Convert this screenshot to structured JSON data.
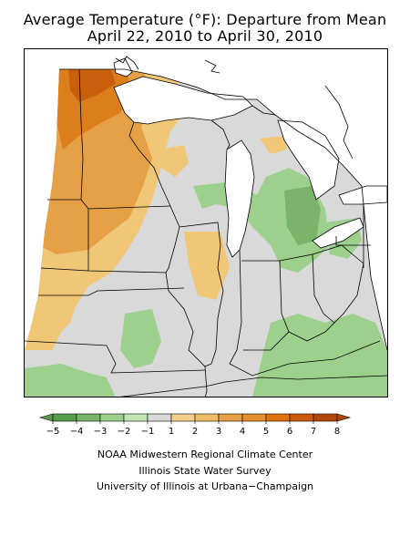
{
  "title": {
    "line1": "Average Temperature (°F): Departure from Mean",
    "line2": "April 22, 2010 to April 30, 2010"
  },
  "legend": {
    "ticks": [
      "−5",
      "−4",
      "−3",
      "−2",
      "−1",
      "1",
      "2",
      "3",
      "4",
      "5",
      "6",
      "7",
      "8"
    ],
    "colors": [
      "#5a9c4e",
      "#7ab46a",
      "#9dd08d",
      "#c3e6b4",
      "#d9d9d9",
      "#f3d089",
      "#efbd66",
      "#e6a046",
      "#e58e2c",
      "#e07410",
      "#cc5c0c",
      "#b3470a"
    ]
  },
  "map_colors": {
    "background": "#ffffff",
    "neutral": "#d9d9d9",
    "green_light": "#9dd08d",
    "green_mid": "#7ab46a",
    "orange_light": "#efc777",
    "orange_mid": "#e6a046",
    "orange_dark": "#dd7e1c",
    "orange_deep": "#c95f0d",
    "lines": "#000000"
  },
  "credits": {
    "line1": "NOAA Midwestern Regional Climate Center",
    "line2": "Illinois State Water Survey",
    "line3": "University of Illinois at Urbana−Champaign"
  }
}
